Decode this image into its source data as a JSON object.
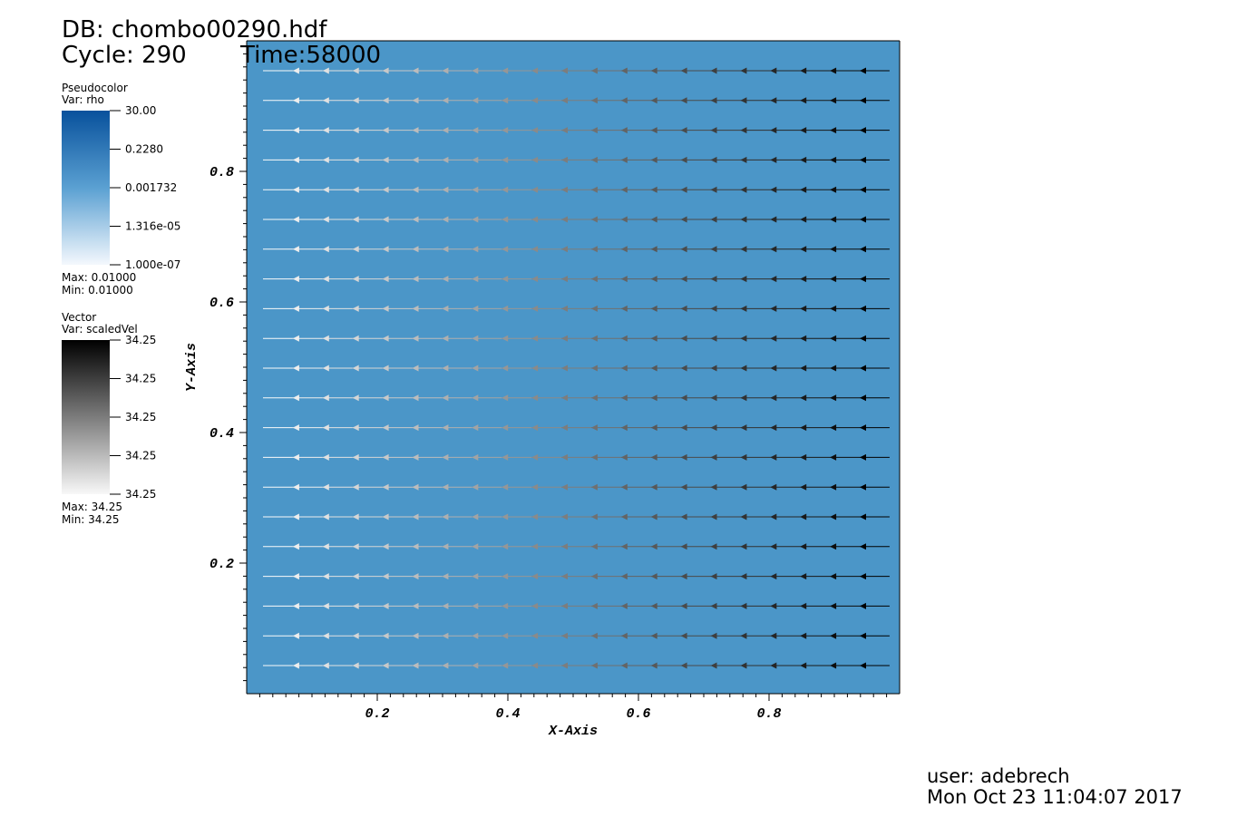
{
  "header": {
    "db": "DB: chombo00290.hdf",
    "cycle": "Cycle: 290",
    "time": "Time:58000"
  },
  "legends": [
    {
      "title": "Pseudocolor",
      "var": "Var: rho",
      "ticks": [
        "30.00",
        "0.2280",
        "0.001732",
        "1.316e-05",
        "1.000e-07"
      ],
      "max": "Max:  0.01000",
      "min": "Min:  0.01000"
    },
    {
      "title": "Vector",
      "var": "Var: scaledVel",
      "ticks": [
        "34.25",
        "34.25",
        "34.25",
        "34.25",
        "34.25"
      ],
      "max": "Max:  34.25",
      "min": "Min:  34.25"
    }
  ],
  "chart_data": {
    "type": "vector",
    "xlabel": "X-Axis",
    "ylabel": "Y-Axis",
    "xlim": [
      0,
      1
    ],
    "ylim": [
      0,
      1
    ],
    "xticks": [
      0.2,
      0.4,
      0.6,
      0.8
    ],
    "yticks": [
      0.2,
      0.4,
      0.6,
      0.8
    ]
  },
  "footer": {
    "user": "user: adebrech",
    "date": "Mon Oct 23 11:04:07 2017"
  }
}
